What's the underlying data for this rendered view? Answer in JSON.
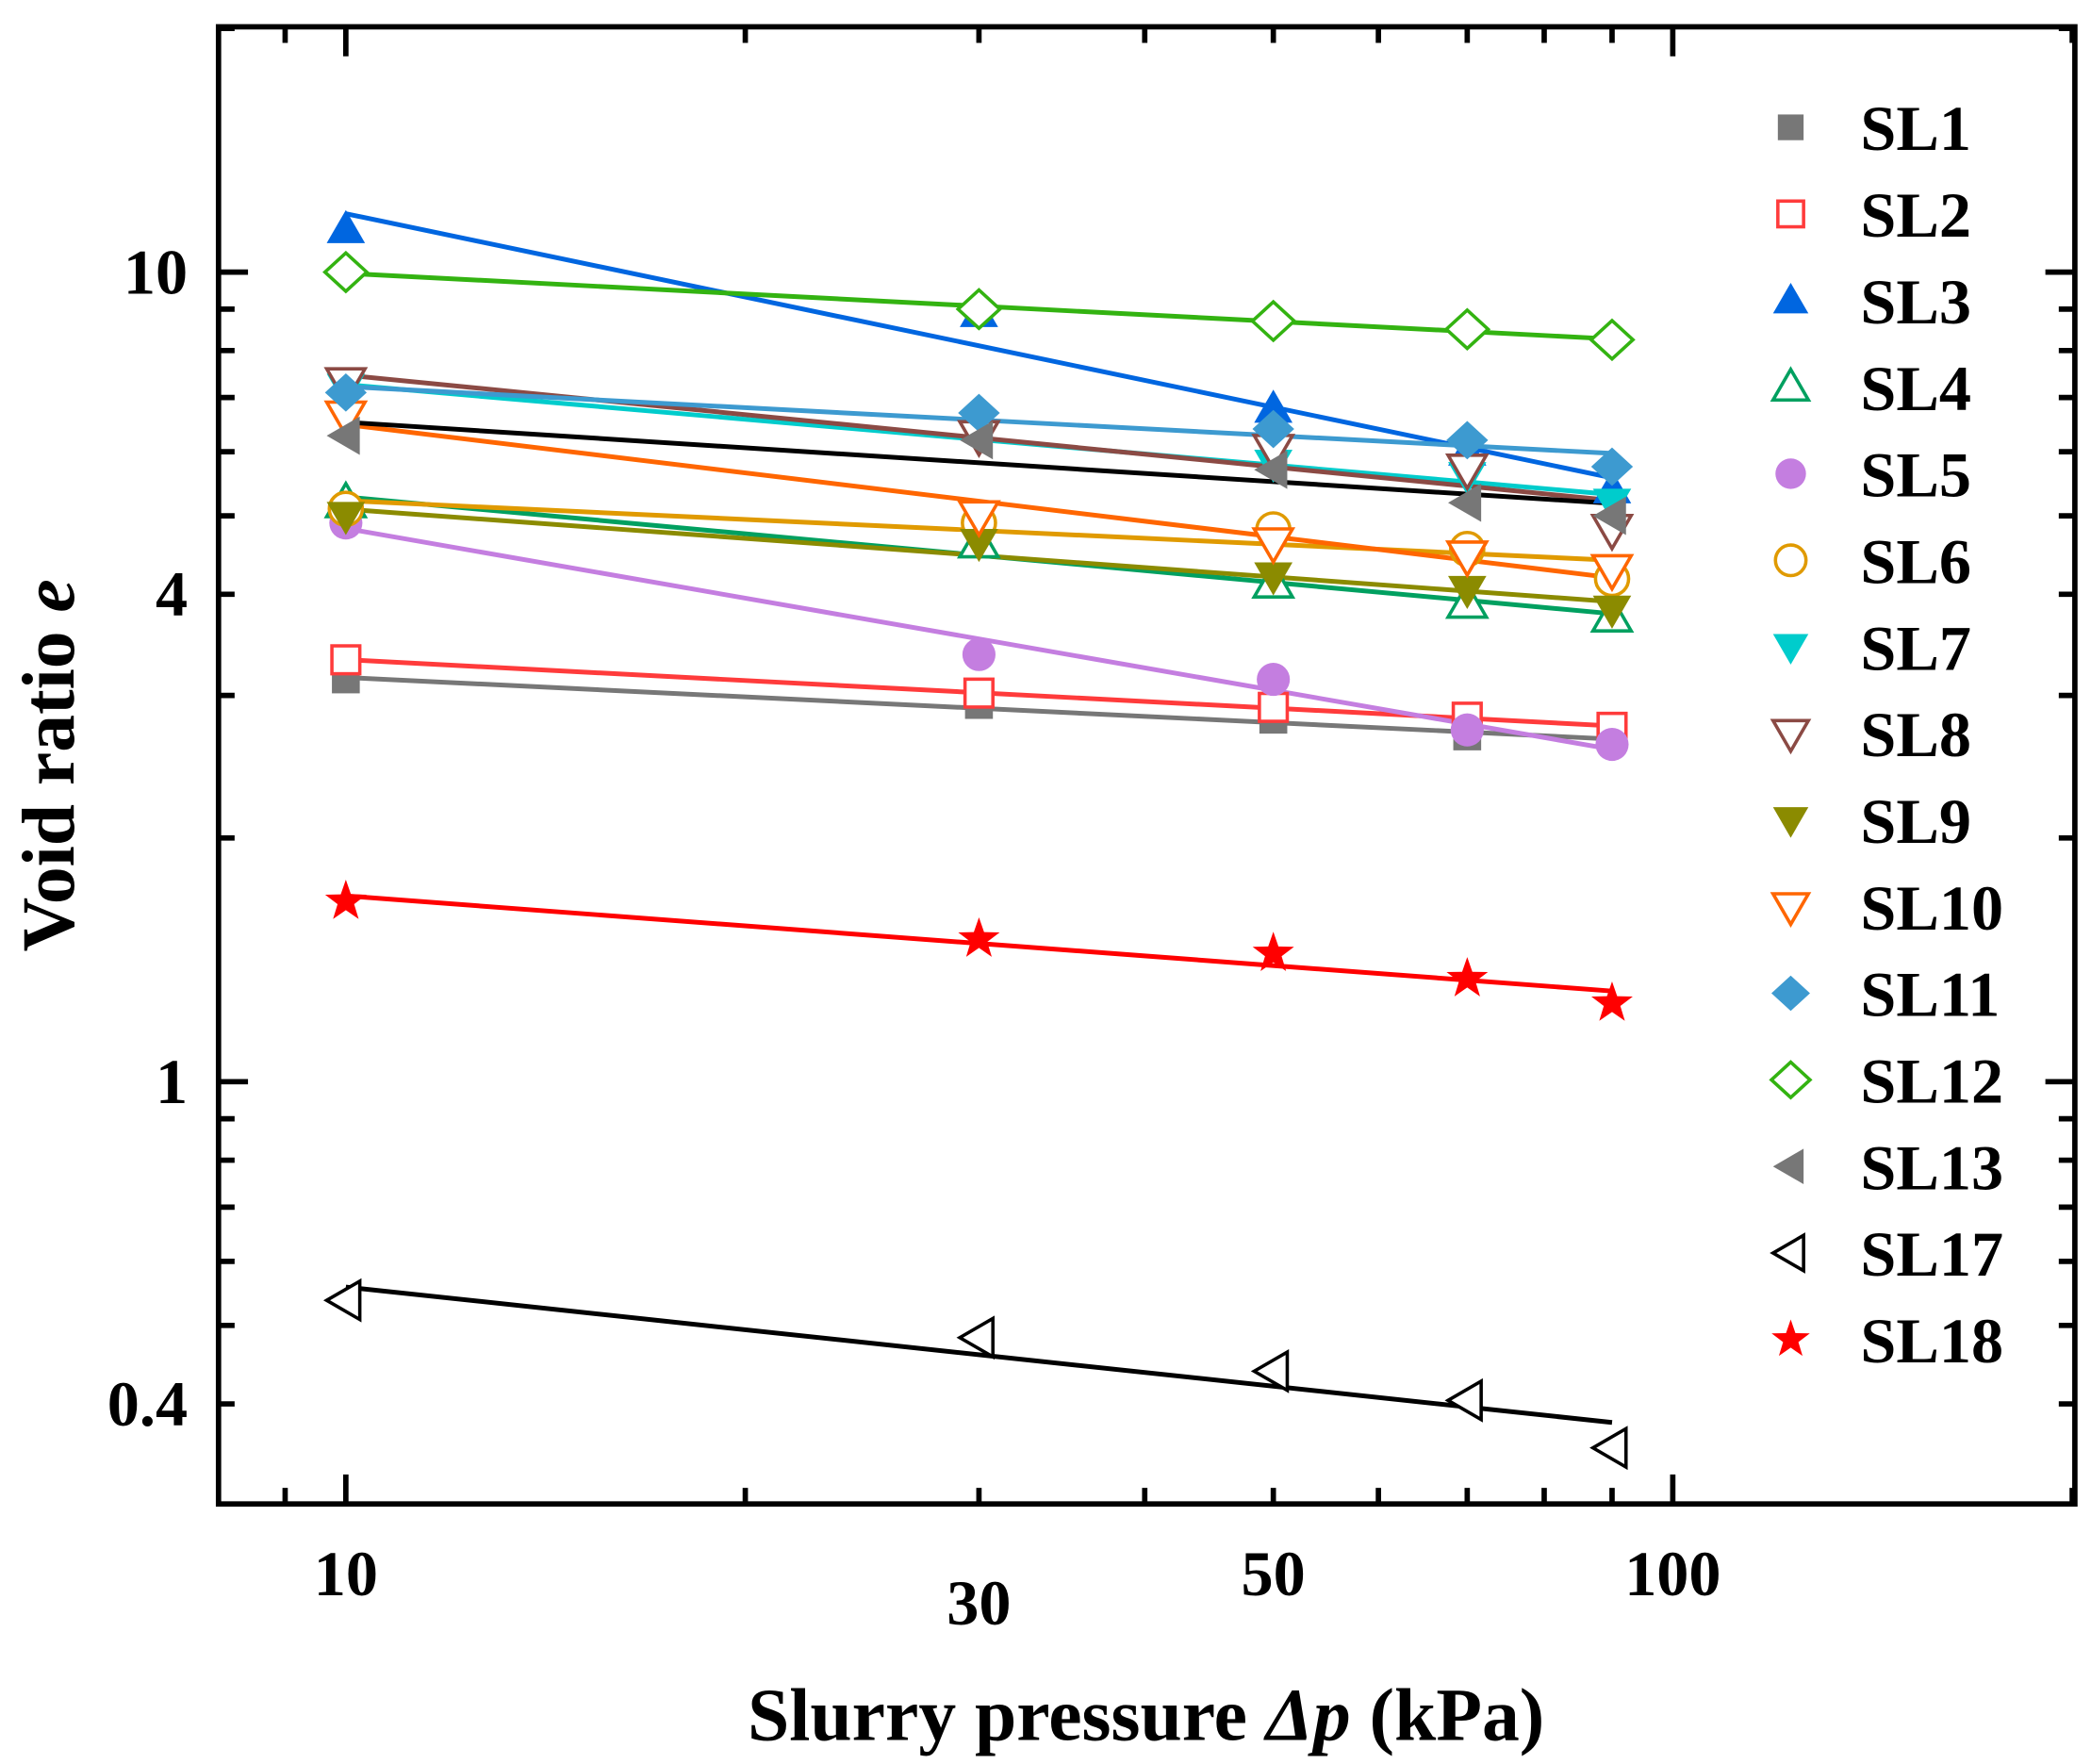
{
  "chart_data": {
    "type": "scatter",
    "xscale": "log",
    "yscale": "log",
    "xlabel_main": "Slurry pressure ",
    "xlabel_symbol": "Δp",
    "xlabel_unit": " (kPa)",
    "ylabel_main": "Void ratio ",
    "ylabel_symbol": "e",
    "xlim": [
      8,
      200
    ],
    "ylim": [
      0.3,
      20
    ],
    "x_tick_labels": [
      "10",
      "30",
      "50",
      "100"
    ],
    "x_tick_values": [
      10,
      30,
      50,
      100
    ],
    "y_tick_labels": [
      "0.4",
      "1",
      "4",
      "10"
    ],
    "y_tick_values": [
      0.4,
      1,
      4,
      10
    ],
    "legend_position": "right",
    "x": [
      10,
      30,
      50,
      70,
      90
    ],
    "series": [
      {
        "name": "SL1",
        "marker": "square",
        "filled": true,
        "color": "#777777",
        "line_color": "#777777",
        "values": [
          3.14,
          2.92,
          2.8,
          2.67,
          2.65
        ]
      },
      {
        "name": "SL2",
        "marker": "square",
        "filled": false,
        "color": "#ff3b3b",
        "line_color": "#ff3b3b",
        "values": [
          3.32,
          3.02,
          2.9,
          2.82,
          2.74
        ]
      },
      {
        "name": "SL3",
        "marker": "triangle-up",
        "filled": true,
        "color": "#0066e0",
        "line_color": "#0066e0",
        "values": [
          11.3,
          8.9,
          6.78,
          6.0,
          5.39
        ]
      },
      {
        "name": "SL4",
        "marker": "triangle-up",
        "filled": false,
        "color": "#00a060",
        "line_color": "#00a060",
        "values": [
          5.19,
          4.63,
          4.13,
          3.9,
          3.75
        ]
      },
      {
        "name": "SL5",
        "marker": "circle",
        "filled": true,
        "color": "#c47ee0",
        "line_color": "#c47ee0",
        "values": [
          4.9,
          3.37,
          3.14,
          2.72,
          2.61
        ]
      },
      {
        "name": "SL6",
        "marker": "circle",
        "filled": false,
        "color": "#e09a00",
        "line_color": "#e09a00",
        "values": [
          5.1,
          4.9,
          4.81,
          4.55,
          4.18
        ]
      },
      {
        "name": "SL7",
        "marker": "triangle-down",
        "filled": true,
        "color": "#00cccc",
        "line_color": "#00cccc",
        "values": [
          7.2,
          6.28,
          5.8,
          5.6,
          5.19
        ]
      },
      {
        "name": "SL8",
        "marker": "triangle-down",
        "filled": false,
        "color": "#8b4a44",
        "line_color": "#8b4a44",
        "values": [
          7.3,
          6.28,
          6.04,
          5.71,
          4.81
        ]
      },
      {
        "name": "SL9",
        "marker": "triangle-down",
        "filled": true,
        "color": "#8b8b00",
        "line_color": "#8b8b00",
        "values": [
          5.0,
          4.63,
          4.21,
          4.05,
          3.83
        ]
      },
      {
        "name": "SL10",
        "marker": "triangle-down",
        "filled": false,
        "color": "#ff6600",
        "line_color": "#ff6600",
        "values": [
          6.64,
          5.0,
          4.63,
          4.46,
          4.29
        ]
      },
      {
        "name": "SL11",
        "marker": "diamond",
        "filled": true,
        "color": "#3d9ad0",
        "line_color": "#3d9ad0",
        "values": [
          7.1,
          6.7,
          6.4,
          6.2,
          5.75
        ]
      },
      {
        "name": "SL12",
        "marker": "diamond",
        "filled": false,
        "color": "#33b311",
        "line_color": "#33b311",
        "values": [
          10.0,
          9.0,
          8.7,
          8.5,
          8.25
        ]
      },
      {
        "name": "SL13",
        "marker": "triangle-left",
        "filled": true,
        "color": "#777777",
        "line_color": "#000000",
        "values": [
          6.28,
          6.2,
          5.7,
          5.19,
          5.0
        ]
      },
      {
        "name": "SL17",
        "marker": "triangle-left",
        "filled": false,
        "color": "#000000",
        "line_color": "#000000",
        "values": [
          0.537,
          0.483,
          0.439,
          0.404,
          0.353
        ]
      },
      {
        "name": "SL18",
        "marker": "star",
        "filled": true,
        "color": "#ff0000",
        "line_color": "#ff0000",
        "values": [
          1.67,
          1.5,
          1.44,
          1.34,
          1.25
        ]
      }
    ]
  }
}
